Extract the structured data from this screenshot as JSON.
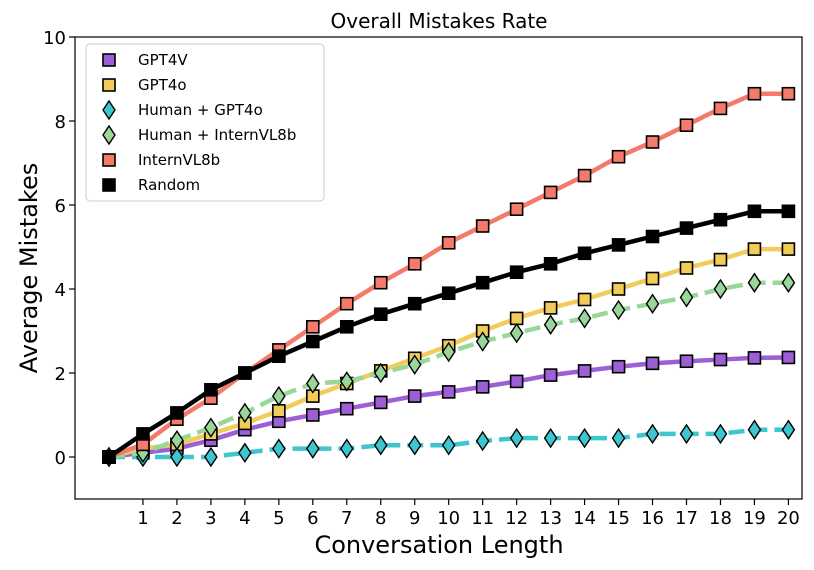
{
  "chart_data": {
    "type": "line",
    "title": "Overall Mistakes Rate",
    "xlabel": "Conversation Length",
    "ylabel": "Average Mistakes",
    "xlim": [
      -1,
      20.4
    ],
    "ylim": [
      -1,
      10
    ],
    "x_ticks": [
      "1",
      "2",
      "3",
      "4",
      "5",
      "6",
      "7",
      "8",
      "9",
      "10",
      "11",
      "12",
      "13",
      "14",
      "15",
      "16",
      "17",
      "18",
      "19",
      "20"
    ],
    "y_ticks": [
      "0",
      "2",
      "4",
      "6",
      "8",
      "10"
    ],
    "x": [
      0,
      1,
      2,
      3,
      4,
      5,
      6,
      7,
      8,
      9,
      10,
      11,
      12,
      13,
      14,
      15,
      16,
      17,
      18,
      19,
      20
    ],
    "legend_position": "top-left",
    "series": [
      {
        "name": "GPT4V",
        "color": "#9d5fd6",
        "marker": "square",
        "dashed": false,
        "values": [
          0,
          0.1,
          0.2,
          0.4,
          0.65,
          0.85,
          1.0,
          1.15,
          1.3,
          1.45,
          1.55,
          1.67,
          1.8,
          1.95,
          2.05,
          2.15,
          2.23,
          2.28,
          2.32,
          2.36,
          2.37
        ]
      },
      {
        "name": "GPT4o",
        "color": "#f2cc5a",
        "marker": "square",
        "dashed": false,
        "values": [
          0,
          0.2,
          0.3,
          0.55,
          0.8,
          1.1,
          1.45,
          1.75,
          2.05,
          2.35,
          2.65,
          3.0,
          3.3,
          3.55,
          3.75,
          4.0,
          4.25,
          4.5,
          4.7,
          4.95,
          4.95
        ]
      },
      {
        "name": "Human + GPT4o",
        "color": "#3ec6d0",
        "marker": "diamond",
        "dashed": true,
        "values": [
          0,
          0,
          0,
          0,
          0.1,
          0.2,
          0.2,
          0.2,
          0.28,
          0.28,
          0.28,
          0.38,
          0.45,
          0.45,
          0.45,
          0.45,
          0.55,
          0.55,
          0.55,
          0.65,
          0.65
        ]
      },
      {
        "name": "Human + InternVL8b",
        "color": "#98d69a",
        "marker": "diamond",
        "dashed": true,
        "values": [
          0,
          0.1,
          0.4,
          0.7,
          1.05,
          1.45,
          1.75,
          1.8,
          2.0,
          2.2,
          2.5,
          2.75,
          2.95,
          3.15,
          3.3,
          3.5,
          3.65,
          3.8,
          4.0,
          4.15,
          4.15
        ]
      },
      {
        "name": "InternVL8b",
        "color": "#f47a6a",
        "marker": "square",
        "dashed": false,
        "values": [
          0,
          0.3,
          0.9,
          1.4,
          2.0,
          2.55,
          3.1,
          3.65,
          4.15,
          4.6,
          5.1,
          5.5,
          5.9,
          6.3,
          6.7,
          7.15,
          7.5,
          7.9,
          8.3,
          8.65,
          8.65
        ]
      },
      {
        "name": "Random",
        "color": "#000000",
        "marker": "square",
        "dashed": false,
        "values": [
          0,
          0.55,
          1.05,
          1.6,
          2.0,
          2.4,
          2.75,
          3.1,
          3.4,
          3.65,
          3.9,
          4.15,
          4.4,
          4.6,
          4.85,
          5.05,
          5.25,
          5.45,
          5.65,
          5.85,
          5.85
        ]
      }
    ]
  }
}
